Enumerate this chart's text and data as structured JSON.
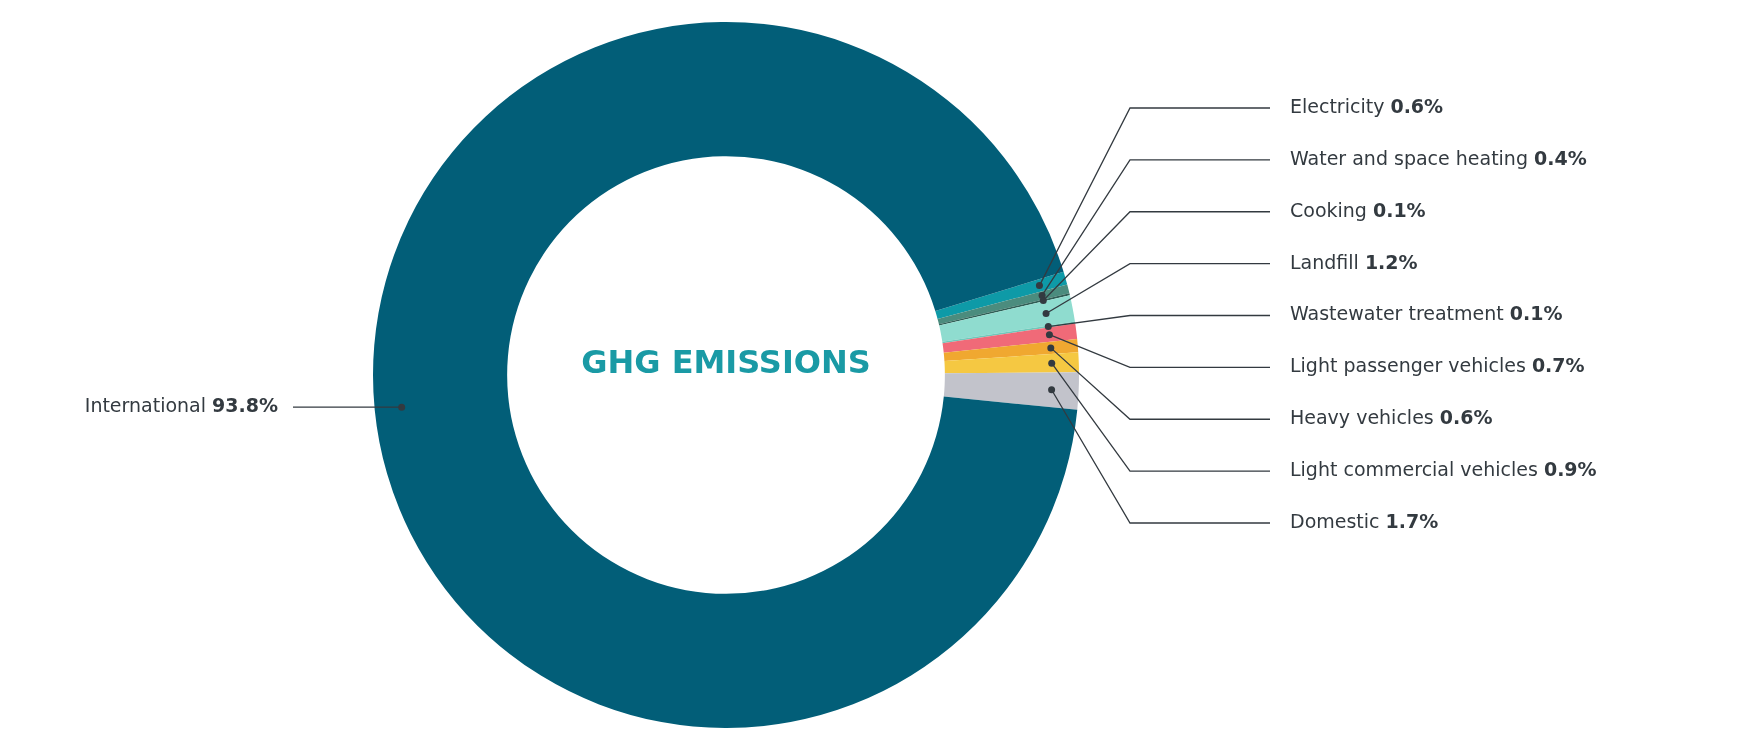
{
  "chart_data": {
    "type": "donut",
    "title": "GHG EMISSIONS",
    "categories": [
      "Electricity",
      "Water and space heating",
      "Cooking",
      "Landfill",
      "Wastewater treatment",
      "Light passenger vehicles",
      "Heavy vehicles",
      "Light commercial vehicles",
      "Domestic",
      "International"
    ],
    "values": [
      0.6,
      0.4,
      0.1,
      1.2,
      0.1,
      0.7,
      0.6,
      0.9,
      1.7,
      93.8
    ],
    "value_labels": [
      "0.6%",
      "0.4%",
      "0.1%",
      "1.2%",
      "0.1%",
      "0.7%",
      "0.6%",
      "0.9%",
      "1.7%",
      "93.8%"
    ],
    "colors": [
      "#0e9aa7",
      "#4b8c7e",
      "#2f5e55",
      "#8fdccf",
      "#6fc9bb",
      "#f06a78",
      "#f0a830",
      "#f5c842",
      "#c2c3cb",
      "#025e78"
    ],
    "legend": false
  }
}
